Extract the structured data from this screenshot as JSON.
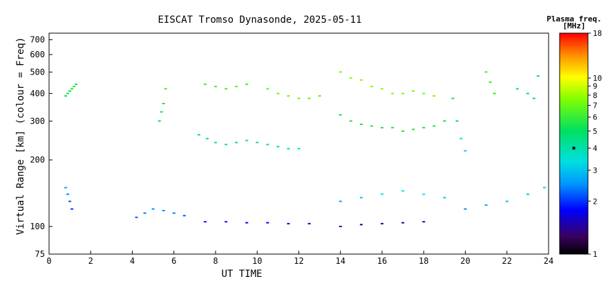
{
  "chart_data": {
    "type": "scatter",
    "title": "EISCAT Tromso Dynasonde, 2025-05-11",
    "xlabel": "UT TIME",
    "ylabel": "Virtual Range [km] (colour = Freq)",
    "xlim": [
      0,
      24
    ],
    "ylim": [
      75,
      750
    ],
    "yscale": "log",
    "xticks": [
      "0",
      "2",
      "4",
      "6",
      "8",
      "10",
      "12",
      "14",
      "16",
      "18",
      "20",
      "22",
      "24"
    ],
    "yticks": [
      "75",
      "100",
      "200",
      "300",
      "400",
      "500",
      "600",
      "700"
    ],
    "colorbar": {
      "title": "Plasma freq.",
      "unit": "[MHz]",
      "ticks": [
        "1",
        "2",
        "3",
        "4",
        "5",
        "6",
        "7",
        "8",
        "9",
        "10",
        "18"
      ],
      "range": [
        1,
        18
      ],
      "marker_value": 4
    },
    "series": [
      {
        "x": [
          0.8,
          0.9,
          1.0,
          1.1,
          1.2,
          1.3
        ],
        "y": [
          390,
          400,
          410,
          420,
          430,
          440
        ],
        "freq": [
          4.4,
          4.5,
          4.6,
          4.7,
          4.6,
          4.5
        ]
      },
      {
        "x": [
          5.3,
          5.4,
          5.5,
          5.6
        ],
        "y": [
          300,
          330,
          360,
          420
        ],
        "freq": [
          4.6,
          4.8,
          5.0,
          5.4
        ]
      },
      {
        "x": [
          7.2,
          7.6,
          8.0,
          8.5,
          9.0,
          9.5,
          10.0,
          10.5,
          11.0,
          11.5,
          12.0
        ],
        "y": [
          260,
          250,
          240,
          235,
          240,
          245,
          240,
          235,
          230,
          225,
          225
        ],
        "freq": [
          3.9,
          3.8,
          3.7,
          3.7,
          3.8,
          3.8,
          3.7,
          3.7,
          3.7,
          3.6,
          3.6
        ]
      },
      {
        "x": [
          7.5,
          8.0,
          8.5,
          9.0,
          9.5
        ],
        "y": [
          440,
          430,
          420,
          430,
          440
        ],
        "freq": [
          5.4,
          5.5,
          5.5,
          5.6,
          5.6
        ]
      },
      {
        "x": [
          10.5,
          11.0,
          11.5,
          12.0,
          12.5,
          13.0
        ],
        "y": [
          420,
          400,
          390,
          380,
          380,
          390
        ],
        "freq": [
          6.0,
          6.2,
          6.3,
          6.2,
          6.0,
          5.9
        ]
      },
      {
        "x": [
          14.0,
          14.5,
          15.0,
          15.5,
          16.0,
          16.5,
          17.0,
          17.5,
          18.0,
          18.5
        ],
        "y": [
          500,
          470,
          460,
          430,
          420,
          400,
          400,
          410,
          400,
          390
        ],
        "freq": [
          6.4,
          6.5,
          6.6,
          6.7,
          6.8,
          6.7,
          6.6,
          6.5,
          6.4,
          6.3
        ]
      },
      {
        "x": [
          14.0,
          14.5,
          15.0,
          15.5,
          16.0,
          16.5,
          17.0,
          17.5,
          18.0,
          18.5,
          19.0
        ],
        "y": [
          320,
          300,
          290,
          285,
          280,
          280,
          270,
          275,
          280,
          285,
          300
        ],
        "freq": [
          4.4,
          4.5,
          4.6,
          4.7,
          4.8,
          4.9,
          5.0,
          4.9,
          4.8,
          4.7,
          4.6
        ]
      },
      {
        "x": [
          19.4,
          19.6,
          19.8,
          20.0
        ],
        "y": [
          380,
          300,
          250,
          220
        ],
        "freq": [
          4.5,
          4.0,
          3.5,
          3.0
        ]
      },
      {
        "x": [
          21.0,
          21.2,
          21.4
        ],
        "y": [
          500,
          450,
          400
        ],
        "freq": [
          5.6,
          5.4,
          5.2
        ]
      },
      {
        "x": [
          22.5,
          23.0,
          23.3,
          23.5
        ],
        "y": [
          420,
          400,
          380,
          480
        ],
        "freq": [
          4.3,
          4.2,
          4.1,
          4.4
        ]
      },
      {
        "x": [
          0.8,
          0.9,
          1.0,
          1.1
        ],
        "y": [
          150,
          140,
          130,
          120
        ],
        "freq": [
          2.8,
          2.6,
          2.4,
          2.2
        ]
      },
      {
        "x": [
          4.2,
          4.6,
          5.0,
          5.5,
          6.0,
          6.5
        ],
        "y": [
          110,
          115,
          120,
          118,
          115,
          112
        ],
        "freq": [
          2.4,
          2.5,
          2.6,
          2.6,
          2.5,
          2.4
        ]
      },
      {
        "x": [
          7.5,
          8.5,
          9.5,
          10.5,
          11.5,
          12.5
        ],
        "y": [
          105,
          105,
          104,
          104,
          103,
          103
        ],
        "freq": [
          2.1,
          2.1,
          2.0,
          2.0,
          2.0,
          2.0
        ]
      },
      {
        "x": [
          14.0,
          15.0,
          16.0,
          17.0,
          18.0,
          19.0
        ],
        "y": [
          130,
          135,
          140,
          145,
          140,
          135
        ],
        "freq": [
          2.8,
          3.0,
          3.2,
          3.3,
          3.2,
          3.0
        ]
      },
      {
        "x": [
          14.0,
          15.0,
          16.0,
          17.0,
          18.0
        ],
        "y": [
          100,
          102,
          103,
          104,
          105
        ],
        "freq": [
          1.6,
          1.7,
          1.6,
          1.5,
          1.5
        ]
      },
      {
        "x": [
          20.0,
          21.0,
          22.0,
          23.0,
          23.8
        ],
        "y": [
          120,
          125,
          130,
          140,
          150
        ],
        "freq": [
          2.6,
          2.8,
          3.0,
          3.0,
          3.1
        ]
      }
    ]
  }
}
